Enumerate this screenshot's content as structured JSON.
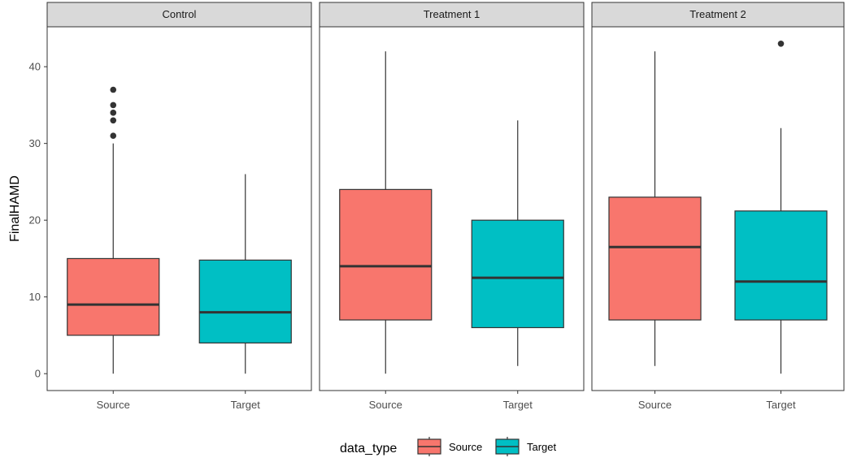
{
  "chart_data": {
    "type": "boxplot",
    "ylabel": "FinalHAMD",
    "xlabel": "",
    "ylim": [
      -2.2,
      45.2
    ],
    "y_ticks": [
      0,
      10,
      20,
      30,
      40
    ],
    "categories": [
      "Source",
      "Target"
    ],
    "grid": false,
    "legend": {
      "title": "data_type",
      "placement": "bottom",
      "entries": [
        "Source",
        "Target"
      ]
    },
    "colors": {
      "Source": "#F8766D",
      "Target": "#00BFC4",
      "strip_fill": "#D9D9D9",
      "box_line": "#333333"
    },
    "facets": [
      {
        "name": "Control",
        "boxes": [
          {
            "category": "Source",
            "min": 0,
            "q1": 5,
            "median": 9,
            "q3": 15,
            "max": 30,
            "outliers": [
              31,
              33,
              34,
              35,
              37
            ]
          },
          {
            "category": "Target",
            "min": 0,
            "q1": 4,
            "median": 8,
            "q3": 14.8,
            "max": 26,
            "outliers": []
          }
        ]
      },
      {
        "name": "Treatment 1",
        "boxes": [
          {
            "category": "Source",
            "min": 0,
            "q1": 7,
            "median": 14,
            "q3": 24,
            "max": 42,
            "outliers": []
          },
          {
            "category": "Target",
            "min": 1,
            "q1": 6,
            "median": 12.5,
            "q3": 20,
            "max": 33,
            "outliers": []
          }
        ]
      },
      {
        "name": "Treatment 2",
        "boxes": [
          {
            "category": "Source",
            "min": 1,
            "q1": 7,
            "median": 16.5,
            "q3": 23,
            "max": 42,
            "outliers": []
          },
          {
            "category": "Target",
            "min": 0,
            "q1": 7,
            "median": 12,
            "q3": 21.2,
            "max": 32,
            "outliers": [
              43
            ]
          }
        ]
      }
    ]
  }
}
